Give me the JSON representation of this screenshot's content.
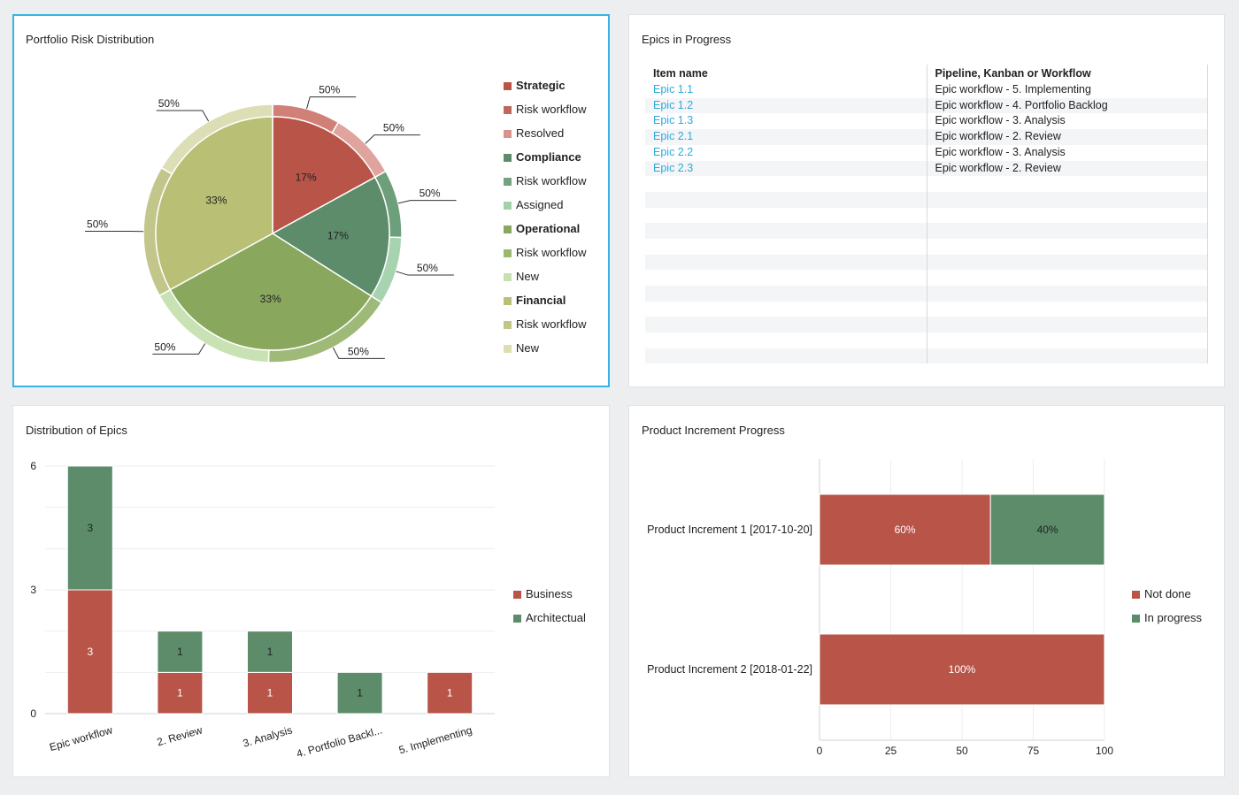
{
  "panels": {
    "risk": {
      "title": "Portfolio Risk Distribution",
      "inner_slices": [
        {
          "label": "17%",
          "color": "#b85448"
        },
        {
          "label": "17%",
          "color": "#5c8c6a"
        },
        {
          "label": "33%",
          "color": "#89a85d"
        },
        {
          "label": "33%",
          "color": "#b9bf75"
        }
      ],
      "outer_labels": [
        "50%",
        "50%",
        "50%",
        "50%",
        "50%",
        "50%",
        "50%",
        "50%"
      ],
      "legend": [
        {
          "label": "Strategic",
          "color": "#b85448",
          "bold": true
        },
        {
          "label": "Risk workflow",
          "color": "#c0675c",
          "bold": false
        },
        {
          "label": "Resolved",
          "color": "#d9938d",
          "bold": false
        },
        {
          "label": "Compliance",
          "color": "#5c8c6a",
          "bold": true
        },
        {
          "label": "Risk workflow",
          "color": "#74a281",
          "bold": false
        },
        {
          "label": "Assigned",
          "color": "#a3d1ae",
          "bold": false
        },
        {
          "label": "Operational",
          "color": "#89a85d",
          "bold": true
        },
        {
          "label": "Risk workflow",
          "color": "#9bb873",
          "bold": false
        },
        {
          "label": "New",
          "color": "#c6e0ae",
          "bold": false
        },
        {
          "label": "Financial",
          "color": "#b9bf75",
          "bold": true
        },
        {
          "label": "Risk workflow",
          "color": "#c2c588",
          "bold": false
        },
        {
          "label": "New",
          "color": "#dcdeb0",
          "bold": false
        }
      ]
    },
    "epics": {
      "title": "Epics in Progress",
      "headers": [
        "Item name",
        "Pipeline, Kanban or Workflow"
      ],
      "rows": [
        {
          "name": "Epic 1.1",
          "workflow": "Epic workflow - 5. Implementing"
        },
        {
          "name": "Epic 1.2",
          "workflow": "Epic workflow - 4. Portfolio Backlog"
        },
        {
          "name": "Epic 1.3",
          "workflow": "Epic workflow - 3. Analysis"
        },
        {
          "name": "Epic 2.1",
          "workflow": "Epic workflow - 2. Review"
        },
        {
          "name": "Epic 2.2",
          "workflow": "Epic workflow - 3. Analysis"
        },
        {
          "name": "Epic 2.3",
          "workflow": "Epic workflow - 2. Review"
        }
      ]
    },
    "distribution": {
      "title": "Distribution of Epics",
      "legend": [
        {
          "label": "Business",
          "color": "#b85448"
        },
        {
          "label": "Architectual",
          "color": "#5c8c6a"
        }
      ]
    },
    "increment": {
      "title": "Product Increment Progress",
      "legend": [
        {
          "label": "Not done",
          "color": "#b85448"
        },
        {
          "label": "In progress",
          "color": "#5c8c6a"
        }
      ]
    }
  },
  "chart_data": [
    {
      "type": "pie",
      "title": "Portfolio Risk Distribution",
      "inner": [
        {
          "name": "Strategic",
          "value": 17
        },
        {
          "name": "Compliance",
          "value": 17
        },
        {
          "name": "Operational",
          "value": 33
        },
        {
          "name": "Financial",
          "value": 33
        }
      ],
      "outer": [
        {
          "group": "Strategic",
          "name": "Risk workflow - Resolved",
          "value": 50
        },
        {
          "group": "Strategic",
          "name": "Risk workflow - Resolved",
          "value": 50
        },
        {
          "group": "Compliance",
          "name": "Risk workflow - Assigned",
          "value": 50
        },
        {
          "group": "Compliance",
          "name": "Risk workflow - Assigned",
          "value": 50
        },
        {
          "group": "Operational",
          "name": "Risk workflow - New",
          "value": 50
        },
        {
          "group": "Operational",
          "name": "Risk workflow - New",
          "value": 50
        },
        {
          "group": "Financial",
          "name": "Risk workflow - New",
          "value": 50
        },
        {
          "group": "Financial",
          "name": "Risk workflow - New",
          "value": 50
        }
      ]
    },
    {
      "type": "bar",
      "title": "Distribution of Epics",
      "stacked": true,
      "categories": [
        "Epic workflow",
        "2. Review",
        "3. Analysis",
        "4. Portfolio Backl...",
        "5. Implementing"
      ],
      "series": [
        {
          "name": "Business",
          "values": [
            3,
            1,
            1,
            0,
            1
          ],
          "color": "#b85448"
        },
        {
          "name": "Architectual",
          "values": [
            3,
            1,
            1,
            1,
            0
          ],
          "color": "#5c8c6a"
        }
      ],
      "ylim": [
        0,
        6
      ],
      "yticks": [
        0,
        3,
        6
      ],
      "legend": "right"
    },
    {
      "type": "bar",
      "orientation": "horizontal",
      "title": "Product Increment Progress",
      "stacked": true,
      "categories": [
        "Product Increment 1 [2017-10-20]",
        "Product Increment 2 [2018-01-22]"
      ],
      "series": [
        {
          "name": "Not done",
          "values": [
            60,
            100
          ],
          "labels": [
            "60%",
            "100%"
          ],
          "color": "#b85448"
        },
        {
          "name": "In progress",
          "values": [
            40,
            0
          ],
          "labels": [
            "40%",
            ""
          ],
          "color": "#5c8c6a"
        }
      ],
      "xlim": [
        0,
        100
      ],
      "xticks": [
        0,
        25,
        50,
        75,
        100
      ],
      "legend": "right"
    }
  ]
}
